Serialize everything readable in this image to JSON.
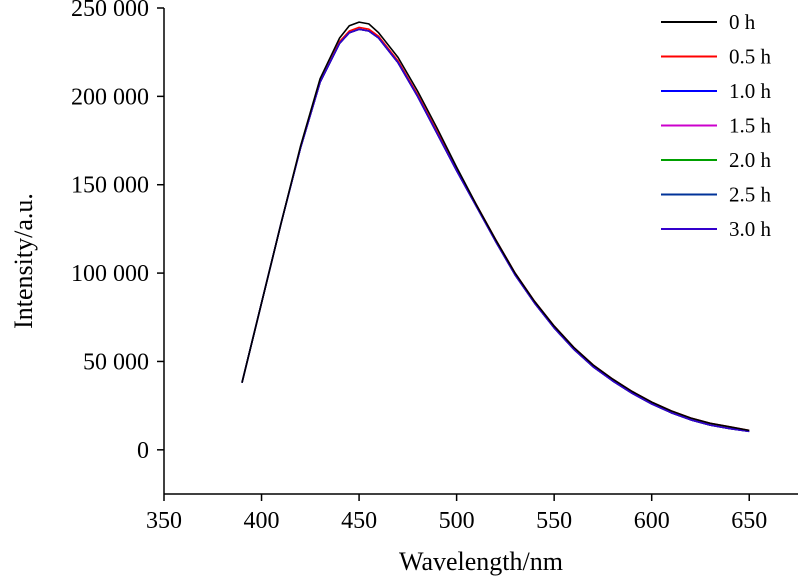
{
  "chart_data": {
    "type": "line",
    "xlabel": "Wavelength/nm",
    "ylabel": "Intensity/a.u.",
    "xlim": [
      350,
      675
    ],
    "ylim": [
      -25000,
      250000
    ],
    "x_ticks": [
      350,
      400,
      450,
      500,
      550,
      600,
      650
    ],
    "x_tick_labels": [
      "350",
      "400",
      "450",
      "500",
      "550",
      "600",
      "650"
    ],
    "y_ticks": [
      0,
      50000,
      100000,
      150000,
      200000,
      250000
    ],
    "y_tick_labels": [
      "0",
      "50 000",
      "100 000",
      "150 000",
      "200 000",
      "250 000"
    ],
    "grid": false,
    "legend_position": "top-right",
    "x": [
      390,
      400,
      410,
      420,
      430,
      440,
      445,
      450,
      455,
      460,
      470,
      480,
      490,
      500,
      510,
      520,
      530,
      540,
      550,
      560,
      570,
      580,
      590,
      600,
      610,
      620,
      630,
      640,
      650
    ],
    "series": [
      {
        "name": "0 h",
        "color": "#000000",
        "values": [
          38000,
          83000,
          128000,
          172000,
          210000,
          233000,
          240000,
          242000,
          241000,
          236000,
          222000,
          203000,
          182000,
          160000,
          139000,
          119000,
          100000,
          84000,
          70000,
          58000,
          48000,
          40000,
          33000,
          27000,
          22000,
          18000,
          15000,
          13000,
          11000
        ]
      },
      {
        "name": "0.5 h",
        "color": "#ff0000",
        "values": [
          38000,
          83000,
          128000,
          171000,
          208000,
          231000,
          237000,
          239000,
          238000,
          234000,
          220000,
          201000,
          180000,
          159000,
          139000,
          119000,
          100000,
          84000,
          70000,
          58000,
          48000,
          40000,
          33000,
          27000,
          22000,
          18000,
          15000,
          13000,
          11000
        ]
      },
      {
        "name": "1.0 h",
        "color": "#0000ff",
        "values": [
          38000,
          83000,
          128000,
          171000,
          208000,
          230000,
          236000,
          238000,
          237000,
          233000,
          219000,
          200000,
          179000,
          158000,
          138000,
          118000,
          99000,
          83000,
          69000,
          57000,
          47000,
          39000,
          32000,
          26000,
          21000,
          17000,
          14000,
          12000,
          10500
        ]
      },
      {
        "name": "1.5 h",
        "color": "#cc00cc",
        "values": [
          38000,
          83000,
          128000,
          171000,
          208000,
          230000,
          236000,
          238000,
          237000,
          233000,
          219000,
          200000,
          179000,
          158000,
          138000,
          118000,
          99000,
          83000,
          69000,
          57000,
          47000,
          39000,
          32000,
          26000,
          21000,
          17000,
          14000,
          12000,
          10500
        ]
      },
      {
        "name": "2.0 h",
        "color": "#00a000",
        "values": [
          38000,
          83000,
          128000,
          171000,
          208000,
          230000,
          236000,
          238000,
          237000,
          233000,
          219000,
          200000,
          179000,
          158000,
          138000,
          118000,
          99000,
          83000,
          69000,
          57000,
          47000,
          39000,
          32000,
          26000,
          21000,
          17000,
          14000,
          12000,
          10500
        ]
      },
      {
        "name": "2.5 h",
        "color": "#003399",
        "values": [
          38000,
          83000,
          128000,
          171000,
          208000,
          230000,
          236000,
          238000,
          237000,
          233000,
          219000,
          200000,
          179000,
          158000,
          138000,
          118000,
          99000,
          83000,
          69000,
          57000,
          47000,
          39000,
          32000,
          26000,
          21000,
          17000,
          14000,
          12000,
          10500
        ]
      },
      {
        "name": "3.0 h",
        "color": "#3300cc",
        "values": [
          38000,
          83000,
          128000,
          171000,
          208000,
          230000,
          236000,
          238000,
          237000,
          233000,
          219000,
          200000,
          179000,
          158000,
          138000,
          118000,
          99000,
          83000,
          69000,
          57000,
          47000,
          39000,
          32000,
          26000,
          21000,
          17000,
          14000,
          12000,
          10500
        ]
      }
    ]
  }
}
